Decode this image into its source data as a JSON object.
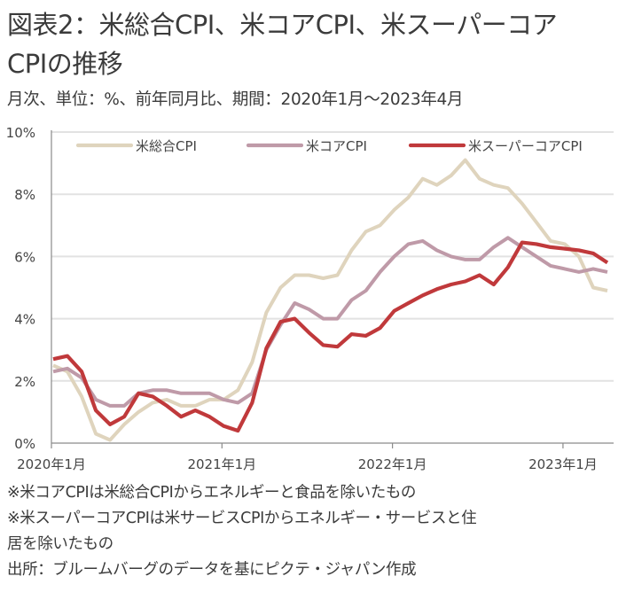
{
  "header": {
    "title_line1": "図表2：米総合CPI、米コアCPI、米スーパーコア",
    "title_line2": "CPIの推移",
    "subtitle": "月次、単位：%、前年同月比、期間：2020年1月～2023年4月"
  },
  "notes": [
    "※米コアCPIは米総合CPIからエネルギーと食品を除いたもの",
    "※米スーパーコアCPIは米サービスCPIからエネルギー・サービスと住",
    "居を除いたもの",
    "出所：ブルームバーグのデータを基にピクテ・ジャパン作成"
  ],
  "chart_data": {
    "type": "line",
    "title": "米総合CPI、米コアCPI、米スーパーコアCPIの推移",
    "xlabel": "",
    "ylabel": "",
    "ylim": [
      0,
      10
    ],
    "yticks": [
      "0%",
      "2%",
      "4%",
      "6%",
      "8%",
      "10%"
    ],
    "ytick_values": [
      0,
      2,
      4,
      6,
      8,
      10
    ],
    "xtick_labels": [
      "2020年1月",
      "2021年1月",
      "2022年1月",
      "2023年1月"
    ],
    "xtick_indices": [
      0,
      12,
      24,
      36
    ],
    "grid": "horizontal",
    "legend_position": "top",
    "x": [
      "2020-01",
      "2020-02",
      "2020-03",
      "2020-04",
      "2020-05",
      "2020-06",
      "2020-07",
      "2020-08",
      "2020-09",
      "2020-10",
      "2020-11",
      "2020-12",
      "2021-01",
      "2021-02",
      "2021-03",
      "2021-04",
      "2021-05",
      "2021-06",
      "2021-07",
      "2021-08",
      "2021-09",
      "2021-10",
      "2021-11",
      "2021-12",
      "2022-01",
      "2022-02",
      "2022-03",
      "2022-04",
      "2022-05",
      "2022-06",
      "2022-07",
      "2022-08",
      "2022-09",
      "2022-10",
      "2022-11",
      "2022-12",
      "2023-01",
      "2023-02",
      "2023-03",
      "2023-04"
    ],
    "series": [
      {
        "name": "米総合CPI",
        "color": "#dfd4bd",
        "values": [
          2.5,
          2.3,
          1.5,
          0.3,
          0.1,
          0.6,
          1.0,
          1.3,
          1.4,
          1.2,
          1.2,
          1.4,
          1.4,
          1.7,
          2.6,
          4.2,
          5.0,
          5.4,
          5.4,
          5.3,
          5.4,
          6.2,
          6.8,
          7.0,
          7.5,
          7.9,
          8.5,
          8.3,
          8.6,
          9.1,
          8.5,
          8.3,
          8.2,
          7.7,
          7.1,
          6.5,
          6.4,
          6.0,
          5.0,
          4.9
        ]
      },
      {
        "name": "米コアCPI",
        "color": "#bf9aa8",
        "values": [
          2.3,
          2.4,
          2.1,
          1.4,
          1.2,
          1.2,
          1.6,
          1.7,
          1.7,
          1.6,
          1.6,
          1.6,
          1.4,
          1.3,
          1.6,
          3.0,
          3.8,
          4.5,
          4.3,
          4.0,
          4.0,
          4.6,
          4.9,
          5.5,
          6.0,
          6.4,
          6.5,
          6.2,
          6.0,
          5.9,
          5.9,
          6.3,
          6.6,
          6.3,
          6.0,
          5.7,
          5.6,
          5.5,
          5.6,
          5.5
        ]
      },
      {
        "name": "米スーパーコアCPI",
        "color": "#c0393b",
        "values": [
          2.7,
          2.8,
          2.3,
          1.05,
          0.6,
          0.85,
          1.6,
          1.5,
          1.2,
          0.85,
          1.05,
          0.85,
          0.55,
          0.4,
          1.3,
          3.05,
          3.9,
          4.0,
          3.55,
          3.15,
          3.1,
          3.5,
          3.45,
          3.7,
          4.25,
          4.5,
          4.75,
          4.95,
          5.1,
          5.2,
          5.4,
          5.1,
          5.65,
          6.45,
          6.4,
          6.3,
          6.25,
          6.2,
          6.1,
          5.8
        ]
      }
    ]
  }
}
